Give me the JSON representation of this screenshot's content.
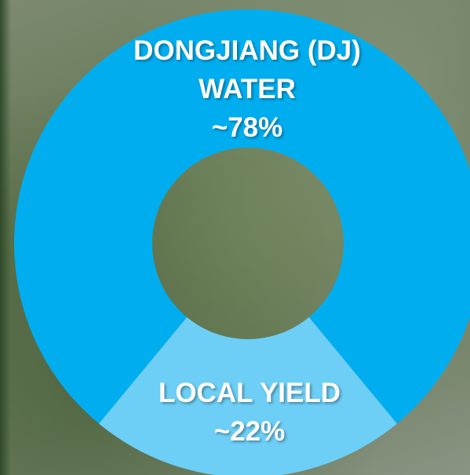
{
  "chart_data": {
    "type": "donut",
    "categories": [
      "DONGJIANG (DJ) WATER",
      "LOCAL YIELD"
    ],
    "values": [
      78,
      22
    ],
    "value_labels": [
      "~78%",
      "~22%"
    ],
    "colors": [
      "#00aeef",
      "#6dcff6"
    ]
  }
}
